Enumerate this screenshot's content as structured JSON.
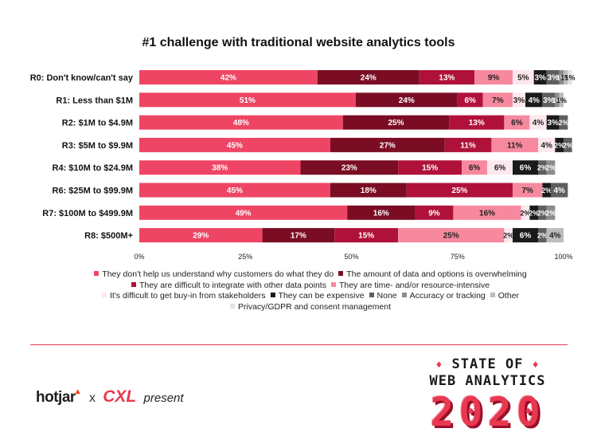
{
  "chart_data": {
    "type": "bar",
    "orientation": "horizontal",
    "stacked": true,
    "title": "#1 challenge with traditional website analytics tools",
    "categories": [
      "R0: Don't know/can't say",
      "R1: Less than $1M",
      "R2: $1M to $4.9M",
      "R3: $5M to $9.9M",
      "R4: $10M to $24.9M",
      "R6: $25M to $99.9M",
      "R7: $100M to $499.9M",
      "R8: $500M+"
    ],
    "series": [
      {
        "name": "They don't help us understand why customers do what they do",
        "color": "#ef4565",
        "values": [
          42,
          51,
          48,
          45,
          38,
          45,
          49,
          29
        ]
      },
      {
        "name": "The amount of data and options is overwhelming",
        "color": "#7a0d24",
        "values": [
          24,
          24,
          25,
          27,
          23,
          18,
          16,
          17
        ]
      },
      {
        "name": "They are difficult to integrate with other data points",
        "color": "#b0113a",
        "values": [
          13,
          6,
          13,
          11,
          15,
          25,
          9,
          15
        ]
      },
      {
        "name": "They are time- and/or resource-intensive",
        "color": "#f7899f",
        "values": [
          9,
          7,
          6,
          11,
          6,
          7,
          16,
          25
        ]
      },
      {
        "name": "It's difficult to get buy-in from stakeholders",
        "color": "#fde8ed",
        "values": [
          5,
          3,
          4,
          4,
          6,
          0,
          2,
          2
        ]
      },
      {
        "name": "They can be expensive",
        "color": "#1a1a1a",
        "values": [
          3,
          4,
          3,
          2,
          6,
          2,
          2,
          6
        ]
      },
      {
        "name": "None",
        "color": "#5e5e5e",
        "values": [
          3,
          3,
          2,
          2,
          2,
          4,
          2,
          2
        ]
      },
      {
        "name": "Accuracy or tracking",
        "color": "#8c8c8c",
        "values": [
          1,
          1,
          0,
          0,
          2,
          0,
          2,
          0
        ]
      },
      {
        "name": "Other",
        "color": "#bdbdbd",
        "values": [
          1,
          1,
          0,
          0,
          0,
          0,
          0,
          4
        ]
      },
      {
        "name": "Privacy/GDPR and consent management",
        "color": "#e3e3e3",
        "values": [
          1,
          0,
          0,
          0,
          0,
          0,
          0,
          0
        ]
      }
    ],
    "data_labels": [
      [
        "42%",
        "24%",
        "13%",
        "9%",
        "5%",
        "3%",
        "3%",
        "1%",
        "1%",
        "1%"
      ],
      [
        "51%",
        "24%",
        "6%",
        "7%",
        "3%",
        "4%",
        "3%",
        "1%",
        "1%",
        ""
      ],
      [
        "48%",
        "25%",
        "13%",
        "6%",
        "4%",
        "3%",
        "2%",
        "",
        "",
        ""
      ],
      [
        "45%",
        "27%",
        "11%",
        "11%",
        "4%",
        "2%",
        "2%",
        "",
        "",
        ""
      ],
      [
        "38%",
        "23%",
        "15%",
        "6%",
        "6%",
        "6%",
        "2%",
        "2%",
        "",
        ""
      ],
      [
        "45%",
        "18%",
        "25%",
        "7%",
        "",
        "2%",
        "4%",
        "",
        "",
        ""
      ],
      [
        "49%",
        "16%",
        "9%",
        "16%",
        "2%",
        "2%",
        "2%",
        "2%",
        "",
        ""
      ],
      [
        "29%",
        "17%",
        "15%",
        "25%",
        "2%",
        "6%",
        "2%",
        "",
        "4%",
        ""
      ]
    ],
    "x_ticks": [
      "0%",
      "25%",
      "50%",
      "75%",
      "100%"
    ],
    "xlim": [
      0,
      100
    ],
    "grid": false,
    "legend_position": "bottom"
  },
  "legend": {
    "rows": [
      [
        0,
        1
      ],
      [
        2,
        3
      ],
      [
        4,
        5,
        6,
        7,
        8
      ],
      [
        9
      ]
    ]
  },
  "branding": {
    "hotjar": "hotjar",
    "x": "x",
    "cxl": "CXL",
    "present": "present",
    "badge_line1": "STATE OF",
    "badge_line2": "WEB ANALYTICS",
    "badge_year": "2020",
    "accent_color": "#e8384f"
  }
}
